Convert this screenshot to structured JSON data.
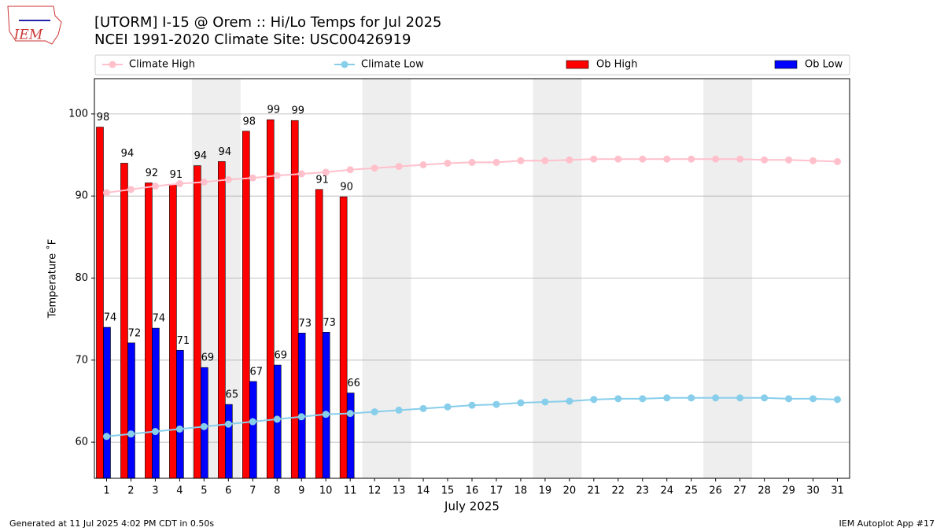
{
  "chart_data": {
    "type": "bar_line",
    "title": "[UTORM] I-15 @ Orem  :: Hi/Lo Temps for Jul 2025",
    "subtitle": "NCEI 1991-2020 Climate Site: USC00426919",
    "xlabel": "July 2025",
    "ylabel": "Temperature ˚F",
    "logo_text": "IEM",
    "footer_left": "Generated at 11 Jul 2025 4:02 PM CDT in 0.50s",
    "footer_right": "IEM Autoplot App #17",
    "categories": [
      "1",
      "2",
      "3",
      "4",
      "5",
      "6",
      "7",
      "8",
      "9",
      "10",
      "11",
      "12",
      "13",
      "14",
      "15",
      "16",
      "17",
      "18",
      "19",
      "20",
      "21",
      "22",
      "23",
      "24",
      "25",
      "26",
      "27",
      "28",
      "29",
      "30",
      "31"
    ],
    "shaded_bands": [
      [
        4.5,
        6.5
      ],
      [
        11.5,
        13.5
      ],
      [
        18.5,
        20.5
      ],
      [
        25.5,
        27.5
      ]
    ],
    "ylim": [
      55.6,
      104.3
    ],
    "yticks": [
      60,
      70,
      80,
      90,
      100
    ],
    "grid": true,
    "series": [
      {
        "name": "Climate High",
        "kind": "line",
        "color": "#ffc0cb",
        "values": [
          90.4,
          90.8,
          91.2,
          91.5,
          91.7,
          92.0,
          92.2,
          92.5,
          92.7,
          92.9,
          93.2,
          93.4,
          93.6,
          93.8,
          94.0,
          94.1,
          94.1,
          94.3,
          94.3,
          94.4,
          94.5,
          94.5,
          94.5,
          94.5,
          94.5,
          94.5,
          94.5,
          94.4,
          94.4,
          94.3,
          94.2
        ]
      },
      {
        "name": "Climate Low",
        "kind": "line",
        "color": "#87ceeb",
        "values": [
          60.7,
          61.0,
          61.3,
          61.6,
          61.9,
          62.2,
          62.5,
          62.8,
          63.1,
          63.4,
          63.5,
          63.7,
          63.9,
          64.1,
          64.3,
          64.5,
          64.6,
          64.8,
          64.9,
          65.0,
          65.2,
          65.3,
          65.3,
          65.4,
          65.4,
          65.4,
          65.4,
          65.4,
          65.3,
          65.3,
          65.2
        ]
      },
      {
        "name": "Ob High",
        "kind": "bar",
        "color": "#ff0000",
        "values": [
          98.4,
          94.0,
          91.6,
          91.4,
          93.7,
          94.2,
          97.9,
          99.3,
          99.2,
          90.8,
          89.9,
          null,
          null,
          null,
          null,
          null,
          null,
          null,
          null,
          null,
          null,
          null,
          null,
          null,
          null,
          null,
          null,
          null,
          null,
          null,
          null
        ],
        "value_labels": [
          "98",
          "94",
          "92",
          "91",
          "94",
          "94",
          "98",
          "99",
          "99",
          "91",
          "90",
          null,
          null,
          null,
          null,
          null,
          null,
          null,
          null,
          null,
          null,
          null,
          null,
          null,
          null,
          null,
          null,
          null,
          null,
          null,
          null
        ]
      },
      {
        "name": "Ob Low",
        "kind": "bar",
        "color": "#0000ff",
        "values": [
          74.0,
          72.1,
          73.9,
          71.2,
          69.1,
          64.6,
          67.4,
          69.4,
          73.3,
          73.4,
          66.0,
          null,
          null,
          null,
          null,
          null,
          null,
          null,
          null,
          null,
          null,
          null,
          null,
          null,
          null,
          null,
          null,
          null,
          null,
          null,
          null
        ],
        "value_labels": [
          "74",
          "72",
          "74",
          "71",
          "69",
          "65",
          "67",
          "69",
          "73",
          "73",
          "66",
          null,
          null,
          null,
          null,
          null,
          null,
          null,
          null,
          null,
          null,
          null,
          null,
          null,
          null,
          null,
          null,
          null,
          null,
          null,
          null
        ]
      }
    ]
  }
}
